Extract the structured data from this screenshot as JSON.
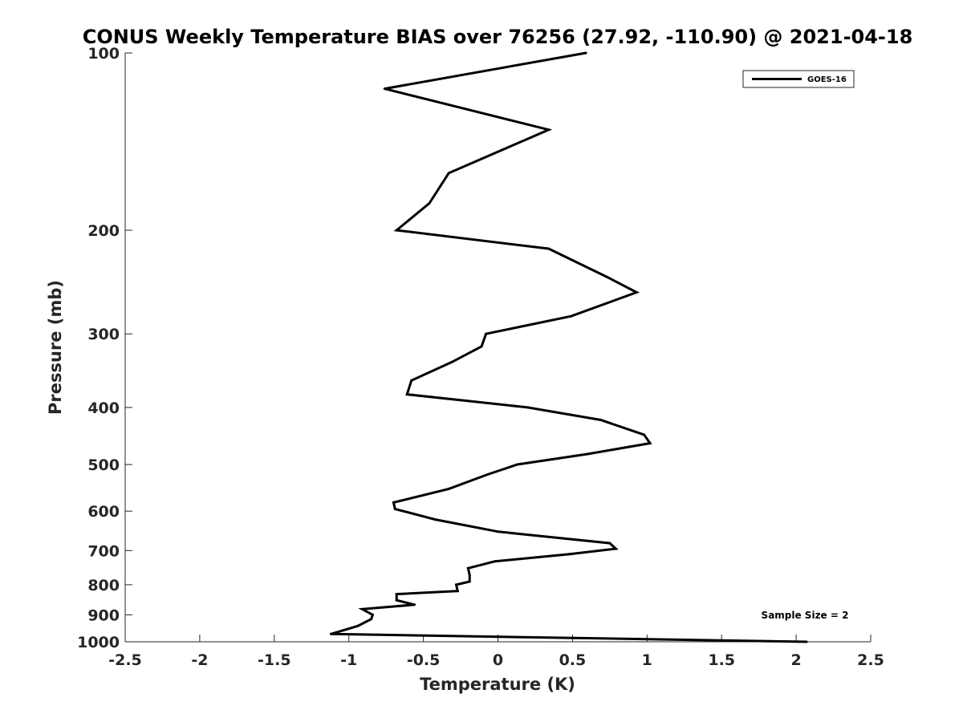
{
  "chart_data": {
    "type": "line",
    "title": "CONUS Weekly Temperature BIAS over 76256 (27.92, -110.90) @ 2021-04-18",
    "xlabel": "Temperature (K)",
    "ylabel": "Pressure (mb)",
    "xlim": [
      -2.5,
      2.5
    ],
    "ylim": [
      100,
      1000
    ],
    "y_scale": "log",
    "y_reversed": true,
    "x_ticks": [
      "-2.5",
      "-2",
      "-1.5",
      "-1",
      "-0.5",
      "0",
      "0.5",
      "1",
      "1.5",
      "2",
      "2.5"
    ],
    "y_ticks": [
      "100",
      "200",
      "300",
      "400",
      "500",
      "600",
      "700",
      "800",
      "900",
      "1000"
    ],
    "grid": false,
    "legend_position": "top-right",
    "line_color": "#000000",
    "series": [
      {
        "name": "GOES-16",
        "x": [
          0.59,
          -0.76,
          0.34,
          -0.33,
          -0.46,
          -0.68,
          0.34,
          0.73,
          0.93,
          0.49,
          -0.08,
          -0.11,
          -0.31,
          -0.58,
          -0.61,
          0.2,
          0.69,
          0.98,
          1.02,
          0.6,
          0.13,
          -0.07,
          -0.33,
          -0.7,
          -0.69,
          -0.42,
          0.0,
          0.75,
          0.79,
          0.48,
          -0.02,
          -0.2,
          -0.19,
          -0.19,
          -0.28,
          -0.27,
          -0.68,
          -0.68,
          -0.56,
          -0.91,
          -0.84,
          -0.85,
          -0.94,
          -1.12,
          2.07
        ],
        "y": [
          100,
          115,
          135,
          160,
          180,
          200,
          215,
          240,
          255,
          280,
          300,
          315,
          335,
          360,
          380,
          400,
          420,
          445,
          460,
          480,
          500,
          520,
          550,
          580,
          595,
          620,
          650,
          680,
          695,
          710,
          730,
          750,
          770,
          790,
          800,
          820,
          830,
          850,
          865,
          880,
          900,
          915,
          940,
          970,
          1000
        ]
      }
    ],
    "annotation": "Sample Size = 2"
  }
}
